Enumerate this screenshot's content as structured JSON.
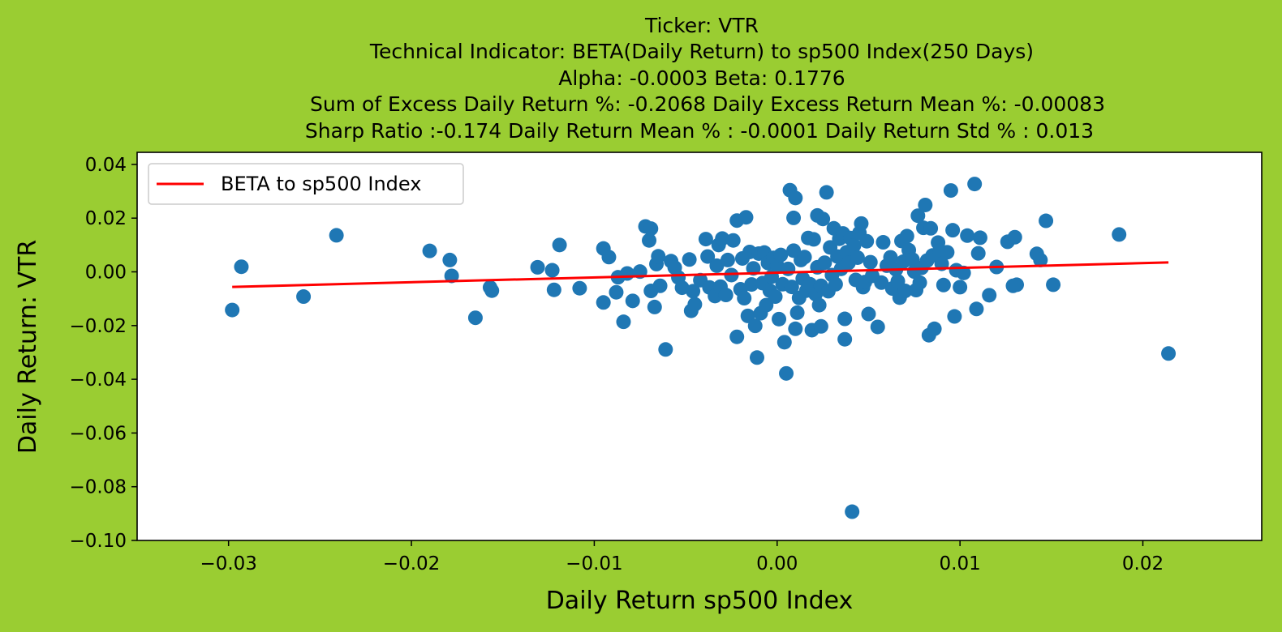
{
  "figure": {
    "background": "#9acd32"
  },
  "chart_data": {
    "type": "scatter",
    "title_lines": [
      "Ticker: VTR",
      "Technical Indicator: BETA(Daily Return) to sp500 Index(250 Days)",
      "Alpha: -0.0003   Beta: 0.1776",
      "Sum of Excess Daily Return %: -0.2068   Daily Excess Return Mean %: -0.00083",
      "Sharp Ratio :-0.174    Daily Return Mean % : -0.0001    Daily Return Std % : 0.013"
    ],
    "xlabel": "Daily Return sp500 Index",
    "ylabel": "Daily Return: VTR",
    "xlim": [
      -0.035,
      0.0265
    ],
    "ylim": [
      -0.1,
      0.0445
    ],
    "xticks": [
      -0.03,
      -0.02,
      -0.01,
      0.0,
      0.01,
      0.02
    ],
    "xtick_labels": [
      "−0.03",
      "−0.02",
      "−0.01",
      "0.00",
      "0.01",
      "0.02"
    ],
    "yticks": [
      0.04,
      0.02,
      0.0,
      -0.02,
      -0.04,
      -0.06,
      -0.08,
      -0.1
    ],
    "ytick_labels": [
      "0.04",
      "0.02",
      "0.00",
      "−0.02",
      "−0.04",
      "−0.06",
      "−0.08",
      "−0.10"
    ],
    "legend": {
      "position": "upper-left",
      "label": "BETA to sp500 Index"
    },
    "colors": {
      "points": "#1f77b4",
      "line": "#ff0000",
      "plot_bg": "#ffffff"
    },
    "fit_line": {
      "name": "BETA to sp500 Index",
      "x": [
        -0.0298,
        0.0214
      ],
      "y": [
        -0.0056,
        0.0035
      ]
    },
    "points": [
      [
        -0.0298,
        -0.0142
      ],
      [
        -0.0293,
        0.0019
      ],
      [
        -0.0259,
        -0.0092
      ],
      [
        -0.0241,
        0.0136
      ],
      [
        -0.019,
        0.0078
      ],
      [
        -0.0179,
        0.0044
      ],
      [
        -0.0178,
        -0.0015
      ],
      [
        -0.0165,
        -0.0171
      ],
      [
        -0.0157,
        -0.0058
      ],
      [
        -0.0156,
        -0.007
      ],
      [
        -0.0131,
        0.0017
      ],
      [
        -0.0123,
        0.0006
      ],
      [
        -0.0122,
        -0.0067
      ],
      [
        -0.0119,
        0.01
      ],
      [
        -0.0108,
        -0.0061
      ],
      [
        -0.0095,
        0.0087
      ],
      [
        -0.0095,
        -0.0114
      ],
      [
        -0.0092,
        0.0055
      ],
      [
        -0.0088,
        -0.0076
      ],
      [
        -0.0087,
        -0.002
      ],
      [
        -0.0084,
        -0.0186
      ],
      [
        -0.0082,
        -0.0006
      ],
      [
        -0.0079,
        -0.0108
      ],
      [
        -0.0075,
        0.0001
      ],
      [
        -0.0072,
        0.0169
      ],
      [
        -0.007,
        0.0117
      ],
      [
        -0.0069,
        0.0161
      ],
      [
        -0.0069,
        -0.0071
      ],
      [
        -0.0067,
        -0.0131
      ],
      [
        -0.0066,
        0.0029
      ],
      [
        -0.0065,
        0.0058
      ],
      [
        -0.0064,
        -0.0052
      ],
      [
        -0.0061,
        -0.0289
      ],
      [
        -0.0058,
        0.004
      ],
      [
        -0.0056,
        0.0016
      ],
      [
        -0.0054,
        -0.0021
      ],
      [
        -0.0052,
        -0.0059
      ],
      [
        -0.0048,
        0.0046
      ],
      [
        -0.0047,
        -0.0145
      ],
      [
        -0.0046,
        -0.0072
      ],
      [
        -0.0045,
        -0.0121
      ],
      [
        -0.0042,
        -0.0031
      ],
      [
        -0.0039,
        0.0122
      ],
      [
        -0.0038,
        0.0057
      ],
      [
        -0.0037,
        -0.0058
      ],
      [
        -0.0034,
        -0.009
      ],
      [
        -0.0033,
        0.0023
      ],
      [
        -0.0032,
        0.01
      ],
      [
        -0.0031,
        -0.0055
      ],
      [
        -0.003,
        0.0124
      ],
      [
        -0.0028,
        -0.0086
      ],
      [
        -0.0027,
        0.0044
      ],
      [
        -0.0025,
        -0.0012
      ],
      [
        -0.0024,
        0.0117
      ],
      [
        -0.0022,
        -0.0242
      ],
      [
        -0.0022,
        0.0191
      ],
      [
        -0.002,
        -0.0065
      ],
      [
        -0.0019,
        0.005
      ],
      [
        -0.0018,
        -0.0098
      ],
      [
        -0.0017,
        0.0203
      ],
      [
        -0.0016,
        -0.0164
      ],
      [
        -0.0015,
        0.0074
      ],
      [
        -0.0014,
        -0.0047
      ],
      [
        -0.0013,
        0.0013
      ],
      [
        -0.0012,
        -0.0201
      ],
      [
        -0.0011,
        -0.0319
      ],
      [
        -0.001,
        0.0068
      ],
      [
        -0.0009,
        -0.0154
      ],
      [
        -0.0008,
        -0.0042
      ],
      [
        -0.0007,
        0.0072
      ],
      [
        -0.0006,
        -0.0124
      ],
      [
        -0.0005,
        0.0033
      ],
      [
        -0.0004,
        -0.007
      ],
      [
        -0.0003,
        -0.0018
      ],
      [
        -0.0002,
        0.0052
      ],
      [
        -0.0001,
        -0.0092
      ],
      [
        0.0,
        0.0023
      ],
      [
        0.0001,
        -0.0176
      ],
      [
        0.0002,
        0.0063
      ],
      [
        0.0003,
        -0.0046
      ],
      [
        0.0004,
        -0.0262
      ],
      [
        0.0005,
        -0.0378
      ],
      [
        0.0006,
        0.0011
      ],
      [
        0.0007,
        0.0304
      ],
      [
        0.0008,
        -0.0056
      ],
      [
        0.0009,
        0.0201
      ],
      [
        0.0009,
        0.0079
      ],
      [
        0.001,
        0.0275
      ],
      [
        0.001,
        -0.0212
      ],
      [
        0.0011,
        -0.0152
      ],
      [
        0.0012,
        -0.0097
      ],
      [
        0.0013,
        0.0044
      ],
      [
        0.0014,
        -0.0025
      ],
      [
        0.0015,
        0.0055
      ],
      [
        0.0016,
        -0.007
      ],
      [
        0.0017,
        0.0126
      ],
      [
        0.0018,
        -0.0046
      ],
      [
        0.0019,
        -0.0217
      ],
      [
        0.002,
        0.0121
      ],
      [
        0.0021,
        -0.0083
      ],
      [
        0.0022,
        0.0017
      ],
      [
        0.0022,
        0.021
      ],
      [
        0.0023,
        -0.0124
      ],
      [
        0.0024,
        -0.0203
      ],
      [
        0.0024,
        -0.0052
      ],
      [
        0.0025,
        0.0197
      ],
      [
        0.0026,
        0.0034
      ],
      [
        0.0027,
        0.0296
      ],
      [
        0.0028,
        -0.0072
      ],
      [
        0.0029,
        0.0091
      ],
      [
        0.003,
        -0.0012
      ],
      [
        0.0031,
        0.0162
      ],
      [
        0.0032,
        -0.0046
      ],
      [
        0.0033,
        0.0057
      ],
      [
        0.0034,
        0.0123
      ],
      [
        0.0035,
        0.0011
      ],
      [
        0.0036,
        0.0143
      ],
      [
        0.0037,
        -0.0251
      ],
      [
        0.0037,
        -0.0175
      ],
      [
        0.0038,
        0.0073
      ],
      [
        0.0039,
        0.0033
      ],
      [
        0.004,
        0.0126
      ],
      [
        0.0041,
        -0.0893
      ],
      [
        0.0042,
        0.0098
      ],
      [
        0.0043,
        -0.003
      ],
      [
        0.0044,
        0.0053
      ],
      [
        0.0045,
        0.0145
      ],
      [
        0.0046,
        0.018
      ],
      [
        0.0047,
        -0.0057
      ],
      [
        0.0048,
        -0.0038
      ],
      [
        0.0049,
        0.0114
      ],
      [
        0.005,
        -0.0157
      ],
      [
        0.0051,
        0.0036
      ],
      [
        0.0052,
        -0.0015
      ],
      [
        0.0055,
        -0.0205
      ],
      [
        0.0057,
        -0.004
      ],
      [
        0.0058,
        0.011
      ],
      [
        0.006,
        0.0023
      ],
      [
        0.0062,
        0.0054
      ],
      [
        0.0063,
        -0.0062
      ],
      [
        0.0065,
        0.0009
      ],
      [
        0.0066,
        -0.0035
      ],
      [
        0.0067,
        -0.0096
      ],
      [
        0.0068,
        0.0115
      ],
      [
        0.0069,
        0.0038
      ],
      [
        0.007,
        -0.0071
      ],
      [
        0.0071,
        0.0133
      ],
      [
        0.0072,
        0.0081
      ],
      [
        0.0074,
        0.0046
      ],
      [
        0.0075,
        0.0001
      ],
      [
        0.0076,
        -0.0068
      ],
      [
        0.0077,
        0.0209
      ],
      [
        0.0078,
        -0.004
      ],
      [
        0.0079,
        0.0015
      ],
      [
        0.008,
        0.0164
      ],
      [
        0.0081,
        0.0249
      ],
      [
        0.0082,
        0.0042
      ],
      [
        0.0083,
        -0.0236
      ],
      [
        0.0084,
        0.0162
      ],
      [
        0.0085,
        0.0061
      ],
      [
        0.0086,
        -0.0212
      ],
      [
        0.0088,
        0.0109
      ],
      [
        0.0089,
        0.0078
      ],
      [
        0.009,
        0.003
      ],
      [
        0.0091,
        -0.0049
      ],
      [
        0.0093,
        0.0073
      ],
      [
        0.0095,
        0.0303
      ],
      [
        0.0096,
        0.0155
      ],
      [
        0.0097,
        -0.0166
      ],
      [
        0.0098,
        0.0006
      ],
      [
        0.01,
        -0.0057
      ],
      [
        0.0102,
        -0.0004
      ],
      [
        0.0104,
        0.0135
      ],
      [
        0.0108,
        0.0327
      ],
      [
        0.0109,
        -0.0138
      ],
      [
        0.011,
        0.0069
      ],
      [
        0.0111,
        0.0127
      ],
      [
        0.0116,
        -0.0087
      ],
      [
        0.012,
        0.0018
      ],
      [
        0.0126,
        0.0112
      ],
      [
        0.0129,
        -0.0052
      ],
      [
        0.013,
        0.0129
      ],
      [
        0.0131,
        -0.0048
      ],
      [
        0.0142,
        0.0067
      ],
      [
        0.0144,
        0.0044
      ],
      [
        0.0147,
        0.019
      ],
      [
        0.0151,
        -0.0048
      ],
      [
        0.0187,
        0.0139
      ],
      [
        0.0214,
        -0.0304
      ]
    ]
  }
}
